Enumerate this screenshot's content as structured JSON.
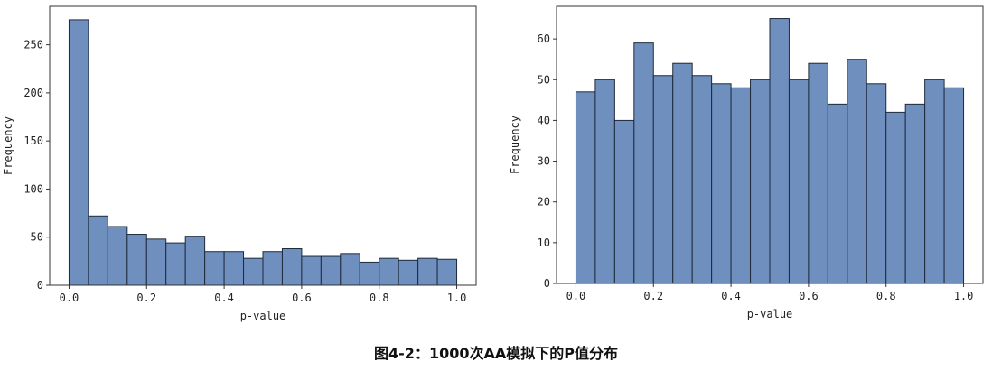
{
  "caption": "图4-2：1000次AA模拟下的P值分布",
  "chart_data": [
    {
      "type": "bar",
      "xlabel": "p-value",
      "ylabel": "Frequency",
      "xlim": [
        -0.05,
        1.05
      ],
      "ylim": [
        0,
        290
      ],
      "xticks": [
        0.0,
        0.2,
        0.4,
        0.6,
        0.8,
        1.0
      ],
      "xtick_labels": [
        "0.0",
        "0.2",
        "0.4",
        "0.6",
        "0.8",
        "1.0"
      ],
      "yticks": [
        0,
        50,
        100,
        150,
        200,
        250
      ],
      "bin_edges": [
        0.0,
        0.05,
        0.1,
        0.15,
        0.2,
        0.25,
        0.3,
        0.35,
        0.4,
        0.45,
        0.5,
        0.55,
        0.6,
        0.65,
        0.7,
        0.75,
        0.8,
        0.85,
        0.9,
        0.95,
        1.0
      ],
      "values": [
        276,
        72,
        61,
        53,
        48,
        44,
        51,
        35,
        35,
        28,
        35,
        38,
        30,
        30,
        33,
        24,
        28,
        26,
        28,
        27
      ],
      "color": "#6f8fbf",
      "edge_color": "#1f2a3a"
    },
    {
      "type": "bar",
      "xlabel": "p-value",
      "ylabel": "Frequency",
      "xlim": [
        -0.05,
        1.05
      ],
      "ylim": [
        0,
        68
      ],
      "xticks": [
        0.0,
        0.2,
        0.4,
        0.6,
        0.8,
        1.0
      ],
      "xtick_labels": [
        "0.0",
        "0.2",
        "0.4",
        "0.6",
        "0.8",
        "1.0"
      ],
      "yticks": [
        0,
        10,
        20,
        30,
        40,
        50,
        60
      ],
      "bin_edges": [
        0.0,
        0.05,
        0.1,
        0.15,
        0.2,
        0.25,
        0.3,
        0.35,
        0.4,
        0.45,
        0.5,
        0.55,
        0.6,
        0.65,
        0.7,
        0.75,
        0.8,
        0.85,
        0.9,
        0.95,
        1.0
      ],
      "values": [
        47,
        50,
        40,
        59,
        51,
        54,
        51,
        49,
        48,
        50,
        65,
        50,
        54,
        44,
        55,
        49,
        42,
        44,
        50,
        48
      ],
      "color": "#6f8fbf",
      "edge_color": "#1f2a3a"
    }
  ]
}
